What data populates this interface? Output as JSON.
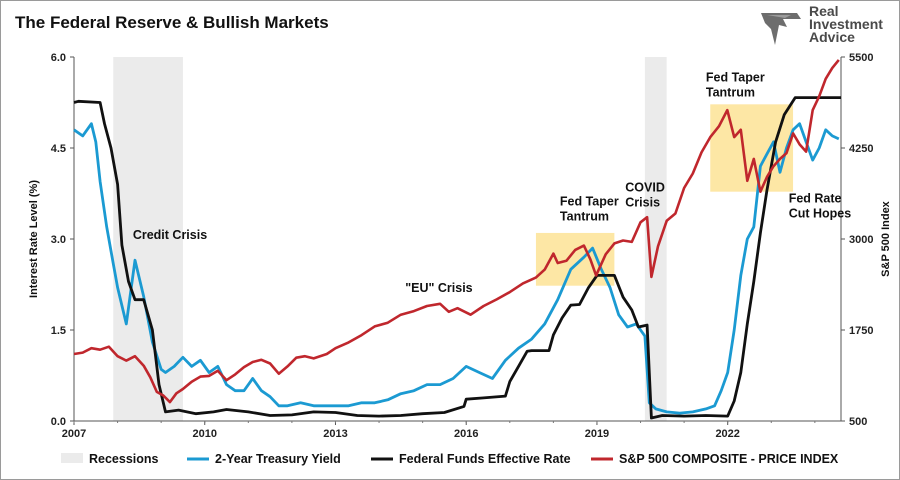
{
  "header": {
    "title": "The Federal Reserve & Bullish Markets",
    "logo_text": [
      "Real",
      "Investment",
      "Advice"
    ]
  },
  "chart_data": {
    "type": "line",
    "xlim": [
      2007,
      2024.6
    ],
    "y_left": {
      "label": "Interest Rate Level (%)",
      "lim": [
        0,
        6
      ],
      "ticks": [
        "0.0",
        "1.5",
        "3.0",
        "4.5",
        "6.0"
      ],
      "tick_values": [
        0,
        1.5,
        3,
        4.5,
        6
      ]
    },
    "y_right": {
      "label": "S&P 500 Index",
      "lim": [
        500,
        5500
      ],
      "ticks": [
        "500",
        "1750",
        "3000",
        "4250",
        "5500"
      ],
      "tick_values": [
        500,
        1750,
        3000,
        4250,
        5500
      ]
    },
    "x_ticks": [
      "2007",
      "2010",
      "2013",
      "2016",
      "2019",
      "2022"
    ],
    "x_tick_values": [
      2007,
      2010,
      2013,
      2016,
      2019,
      2022
    ],
    "recessions": [
      [
        2007.9,
        2009.5
      ],
      [
        2020.1,
        2020.6
      ]
    ],
    "highlights": [
      {
        "x": [
          2017.6,
          2019.4
        ],
        "y_left": [
          2.23,
          3.1
        ]
      },
      {
        "x": [
          2021.6,
          2023.5
        ],
        "y_left": [
          3.78,
          5.22
        ]
      }
    ],
    "annotations": [
      {
        "lines": [
          "Credit Crisis"
        ],
        "x": 2008.35,
        "y": 3.0
      },
      {
        "lines": [
          "\"EU\" Crisis"
        ],
        "x": 2014.6,
        "y": 2.13
      },
      {
        "lines": [
          "Fed Taper",
          "Tantrum"
        ],
        "x": 2018.15,
        "y": 3.55
      },
      {
        "lines": [
          "COVID",
          "Crisis"
        ],
        "x": 2019.65,
        "y": 3.78
      },
      {
        "lines": [
          "Fed Taper",
          "Tantrum"
        ],
        "x": 2021.5,
        "y": 5.6
      },
      {
        "lines": [
          "Fed Rate",
          "Cut Hopes"
        ],
        "x": 2023.4,
        "y": 3.6
      }
    ],
    "series": [
      {
        "name": "2-Year Treasury Yield",
        "axis": "left",
        "color": "#1b9ad2",
        "x": [
          2007.0,
          2007.2,
          2007.4,
          2007.5,
          2007.6,
          2007.75,
          2007.9,
          2008.0,
          2008.2,
          2008.4,
          2008.6,
          2008.8,
          2009.0,
          2009.1,
          2009.3,
          2009.5,
          2009.7,
          2009.9,
          2010.1,
          2010.3,
          2010.5,
          2010.7,
          2010.9,
          2011.1,
          2011.3,
          2011.5,
          2011.7,
          2011.9,
          2012.2,
          2012.5,
          2012.8,
          2013.0,
          2013.3,
          2013.6,
          2013.9,
          2014.2,
          2014.5,
          2014.8,
          2015.1,
          2015.4,
          2015.7,
          2016.0,
          2016.3,
          2016.6,
          2016.9,
          2017.2,
          2017.5,
          2017.8,
          2018.1,
          2018.4,
          2018.7,
          2018.9,
          2019.1,
          2019.3,
          2019.5,
          2019.7,
          2019.9,
          2020.1,
          2020.2,
          2020.35,
          2020.6,
          2020.9,
          2021.2,
          2021.5,
          2021.7,
          2021.85,
          2022.0,
          2022.15,
          2022.3,
          2022.45,
          2022.6,
          2022.75,
          2022.9,
          2023.05,
          2023.2,
          2023.35,
          2023.5,
          2023.65,
          2023.8,
          2023.95,
          2024.1,
          2024.25,
          2024.4,
          2024.55
        ],
        "y": [
          4.8,
          4.7,
          4.9,
          4.6,
          3.95,
          3.2,
          2.6,
          2.2,
          1.6,
          2.65,
          2.05,
          1.3,
          0.85,
          0.8,
          0.9,
          1.05,
          0.9,
          1.0,
          0.8,
          0.9,
          0.6,
          0.5,
          0.5,
          0.7,
          0.5,
          0.4,
          0.25,
          0.25,
          0.3,
          0.25,
          0.25,
          0.25,
          0.25,
          0.3,
          0.3,
          0.35,
          0.45,
          0.5,
          0.6,
          0.6,
          0.7,
          0.9,
          0.8,
          0.7,
          1.0,
          1.2,
          1.35,
          1.6,
          2.0,
          2.5,
          2.7,
          2.85,
          2.5,
          2.2,
          1.75,
          1.55,
          1.6,
          1.4,
          0.3,
          0.2,
          0.15,
          0.13,
          0.15,
          0.2,
          0.25,
          0.5,
          0.8,
          1.5,
          2.4,
          3.0,
          3.2,
          4.2,
          4.4,
          4.6,
          4.1,
          4.5,
          4.8,
          4.9,
          4.6,
          4.3,
          4.5,
          4.8,
          4.7,
          4.65
        ]
      },
      {
        "name": "Federal Funds Effective Rate",
        "axis": "left",
        "color": "#111111",
        "x": [
          2007.0,
          2007.1,
          2007.6,
          2007.7,
          2007.85,
          2008.0,
          2008.1,
          2008.25,
          2008.4,
          2008.6,
          2008.8,
          2008.95,
          2009.1,
          2009.4,
          2009.8,
          2010.2,
          2010.5,
          2011.0,
          2011.5,
          2012.0,
          2012.5,
          2013.0,
          2013.5,
          2014.0,
          2014.5,
          2015.0,
          2015.5,
          2015.95,
          2016.0,
          2016.4,
          2016.9,
          2017.0,
          2017.2,
          2017.4,
          2017.5,
          2017.9,
          2018.0,
          2018.2,
          2018.4,
          2018.6,
          2018.8,
          2019.0,
          2019.4,
          2019.6,
          2019.8,
          2019.95,
          2020.15,
          2020.25,
          2020.5,
          2021.0,
          2021.5,
          2022.0,
          2022.15,
          2022.3,
          2022.45,
          2022.6,
          2022.75,
          2022.9,
          2023.1,
          2023.3,
          2023.55,
          2024.6
        ],
        "y": [
          5.25,
          5.27,
          5.25,
          4.9,
          4.5,
          3.9,
          2.9,
          2.3,
          2.0,
          2.0,
          1.5,
          0.6,
          0.15,
          0.18,
          0.12,
          0.15,
          0.19,
          0.15,
          0.09,
          0.1,
          0.15,
          0.14,
          0.09,
          0.08,
          0.09,
          0.12,
          0.14,
          0.24,
          0.36,
          0.38,
          0.41,
          0.65,
          0.9,
          1.15,
          1.16,
          1.16,
          1.42,
          1.7,
          1.91,
          1.92,
          2.19,
          2.4,
          2.4,
          2.04,
          1.83,
          1.55,
          1.58,
          0.05,
          0.09,
          0.08,
          0.09,
          0.08,
          0.33,
          0.8,
          1.6,
          2.3,
          3.1,
          3.8,
          4.6,
          5.05,
          5.33,
          5.33
        ]
      },
      {
        "name": "S&P 500 COMPOSITE - PRICE INDEX",
        "axis": "right",
        "color": "#c0272d",
        "x": [
          2007.0,
          2007.2,
          2007.4,
          2007.6,
          2007.8,
          2008.0,
          2008.2,
          2008.4,
          2008.6,
          2008.75,
          2008.9,
          2009.05,
          2009.2,
          2009.35,
          2009.5,
          2009.7,
          2009.9,
          2010.1,
          2010.3,
          2010.5,
          2010.7,
          2010.9,
          2011.1,
          2011.3,
          2011.5,
          2011.7,
          2011.9,
          2012.1,
          2012.3,
          2012.5,
          2012.8,
          2013.0,
          2013.3,
          2013.6,
          2013.9,
          2014.2,
          2014.5,
          2014.8,
          2015.1,
          2015.4,
          2015.6,
          2015.8,
          2016.1,
          2016.4,
          2016.7,
          2017.0,
          2017.3,
          2017.6,
          2017.8,
          2018.0,
          2018.1,
          2018.3,
          2018.5,
          2018.7,
          2018.85,
          2018.98,
          2019.2,
          2019.4,
          2019.6,
          2019.8,
          2020.0,
          2020.15,
          2020.25,
          2020.4,
          2020.6,
          2020.8,
          2021.0,
          2021.2,
          2021.4,
          2021.6,
          2021.8,
          2021.99,
          2022.15,
          2022.3,
          2022.45,
          2022.6,
          2022.75,
          2022.9,
          2023.05,
          2023.2,
          2023.35,
          2023.5,
          2023.65,
          2023.8,
          2023.95,
          2024.1,
          2024.25,
          2024.4,
          2024.55
        ],
        "y": [
          1420,
          1440,
          1500,
          1480,
          1520,
          1390,
          1330,
          1390,
          1260,
          1100,
          900,
          850,
          760,
          880,
          940,
          1040,
          1110,
          1120,
          1190,
          1060,
          1140,
          1240,
          1310,
          1340,
          1290,
          1150,
          1250,
          1370,
          1390,
          1360,
          1420,
          1500,
          1580,
          1680,
          1800,
          1850,
          1960,
          2010,
          2080,
          2110,
          2000,
          2050,
          1960,
          2080,
          2170,
          2270,
          2390,
          2470,
          2580,
          2800,
          2670,
          2700,
          2850,
          2910,
          2720,
          2500,
          2790,
          2940,
          2980,
          2960,
          3230,
          3300,
          2480,
          2900,
          3250,
          3350,
          3700,
          3900,
          4190,
          4400,
          4550,
          4770,
          4400,
          4500,
          3800,
          4100,
          3650,
          3850,
          4000,
          4100,
          4180,
          4450,
          4300,
          4200,
          4770,
          4960,
          5200,
          5350,
          5460
        ]
      }
    ],
    "legend": {
      "position": "bottom",
      "items": [
        {
          "label": "Recessions",
          "kind": "box",
          "color": "#ebebeb"
        },
        {
          "label": "2-Year Treasury Yield",
          "kind": "line",
          "color": "#1b9ad2"
        },
        {
          "label": "Federal Funds Effective Rate",
          "kind": "line",
          "color": "#111111"
        },
        {
          "label": "S&P 500 COMPOSITE - PRICE INDEX",
          "kind": "line",
          "color": "#c0272d"
        }
      ]
    },
    "colors": {
      "recession": "#ebebeb",
      "highlight": "#fde49b"
    }
  }
}
